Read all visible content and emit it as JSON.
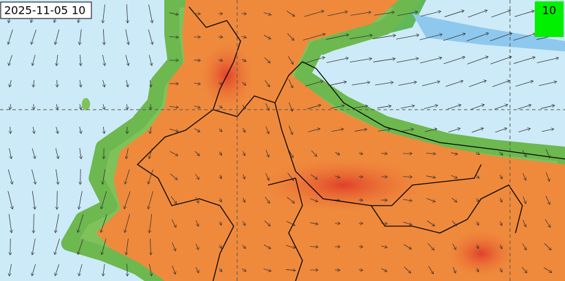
{
  "timestamp": "2025-11-05 10",
  "badge": "10"
}
